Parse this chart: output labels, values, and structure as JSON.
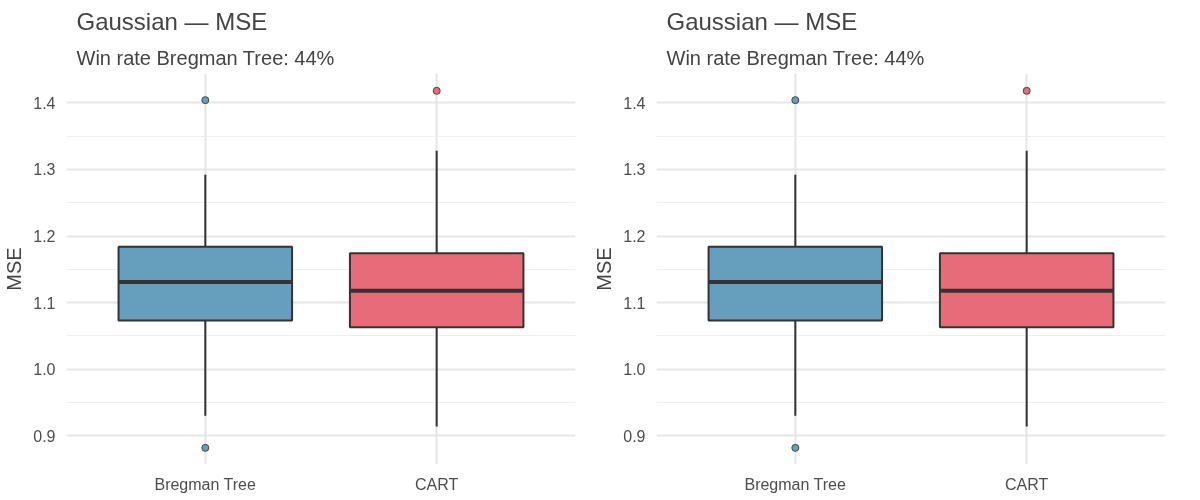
{
  "chart_data": [
    {
      "type": "box",
      "title": "Gaussian — MSE",
      "subtitle": "Win rate Bregman Tree: 44%",
      "ylabel": "MSE",
      "categories": [
        "Bregman Tree",
        "CART"
      ],
      "colors": [
        "#659fbd",
        "#e86b79"
      ],
      "boxes": [
        {
          "low": 0.93,
          "q1": 1.073,
          "median": 1.131,
          "q3": 1.184,
          "high": 1.292,
          "outliers": [
            1.404,
            0.882
          ]
        },
        {
          "low": 0.914,
          "q1": 1.063,
          "median": 1.118,
          "q3": 1.174,
          "high": 1.328,
          "outliers": [
            1.418
          ]
        }
      ],
      "ylim": [
        0.857,
        1.444
      ],
      "yticks": [
        0.9,
        {
          "value": 0.95,
          "label": null
        },
        {
          "value": 1.0,
          "label": "1.0"
        },
        {
          "value": 1.05,
          "label": null
        },
        1.1,
        {
          "value": 1.15,
          "label": null
        },
        1.2,
        {
          "value": 1.25,
          "label": null
        },
        1.3,
        {
          "value": 1.35,
          "label": null
        },
        1.4
      ],
      "grid": true
    },
    {
      "type": "box",
      "title": "Gaussian — MSE",
      "subtitle": "Win rate Bregman Tree: 44%",
      "ylabel": "MSE",
      "categories": [
        "Bregman Tree",
        "CART"
      ],
      "colors": [
        "#659fbd",
        "#e86b79"
      ],
      "boxes": [
        {
          "low": 0.93,
          "q1": 1.073,
          "median": 1.131,
          "q3": 1.184,
          "high": 1.292,
          "outliers": [
            1.404,
            0.882
          ]
        },
        {
          "low": 0.914,
          "q1": 1.063,
          "median": 1.118,
          "q3": 1.174,
          "high": 1.328,
          "outliers": [
            1.418
          ]
        }
      ],
      "ylim": [
        0.857,
        1.444
      ],
      "yticks": [
        0.9,
        {
          "value": 0.95,
          "label": null
        },
        {
          "value": 1.0,
          "label": "1.0"
        },
        {
          "value": 1.05,
          "label": null
        },
        1.1,
        {
          "value": 1.15,
          "label": null
        },
        1.2,
        {
          "value": 1.25,
          "label": null
        },
        1.3,
        {
          "value": 1.35,
          "label": null
        },
        1.4
      ],
      "grid": true
    }
  ]
}
